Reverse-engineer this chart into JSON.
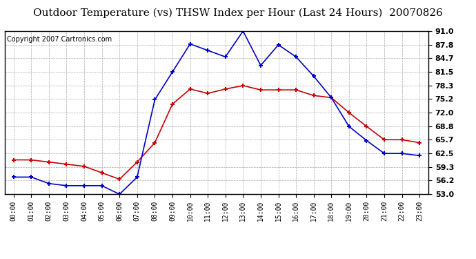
{
  "title": "Outdoor Temperature (vs) THSW Index per Hour (Last 24 Hours)  20070826",
  "copyright": "Copyright 2007 Cartronics.com",
  "hours": [
    "00:00",
    "01:00",
    "02:00",
    "03:00",
    "04:00",
    "05:00",
    "06:00",
    "07:00",
    "08:00",
    "09:00",
    "10:00",
    "11:00",
    "12:00",
    "13:00",
    "14:00",
    "15:00",
    "16:00",
    "17:00",
    "18:00",
    "19:00",
    "20:00",
    "21:00",
    "22:00",
    "23:00"
  ],
  "temp": [
    61.0,
    61.0,
    60.5,
    60.0,
    59.5,
    58.0,
    56.5,
    60.5,
    65.0,
    74.0,
    77.5,
    76.5,
    77.5,
    78.3,
    77.3,
    77.3,
    77.3,
    76.0,
    75.5,
    72.0,
    68.8,
    65.7,
    65.7,
    65.0
  ],
  "thsw": [
    57.0,
    57.0,
    55.5,
    55.0,
    55.0,
    55.0,
    53.0,
    57.0,
    75.0,
    81.5,
    88.0,
    86.5,
    85.0,
    91.0,
    83.0,
    87.8,
    85.0,
    80.5,
    75.5,
    68.8,
    65.5,
    62.5,
    62.5,
    62.0
  ],
  "temp_color": "#cc0000",
  "thsw_color": "#0000cc",
  "bg_color": "#ffffff",
  "plot_bg_color": "#ffffff",
  "grid_color": "#aaaaaa",
  "ylim": [
    53.0,
    91.0
  ],
  "yticks": [
    53.0,
    56.2,
    59.3,
    62.5,
    65.7,
    68.8,
    72.0,
    75.2,
    78.3,
    81.5,
    84.7,
    87.8,
    91.0
  ],
  "title_fontsize": 11,
  "copyright_fontsize": 7,
  "marker": "+",
  "markersize": 5,
  "linewidth": 1.2,
  "markeredgewidth": 1.5
}
